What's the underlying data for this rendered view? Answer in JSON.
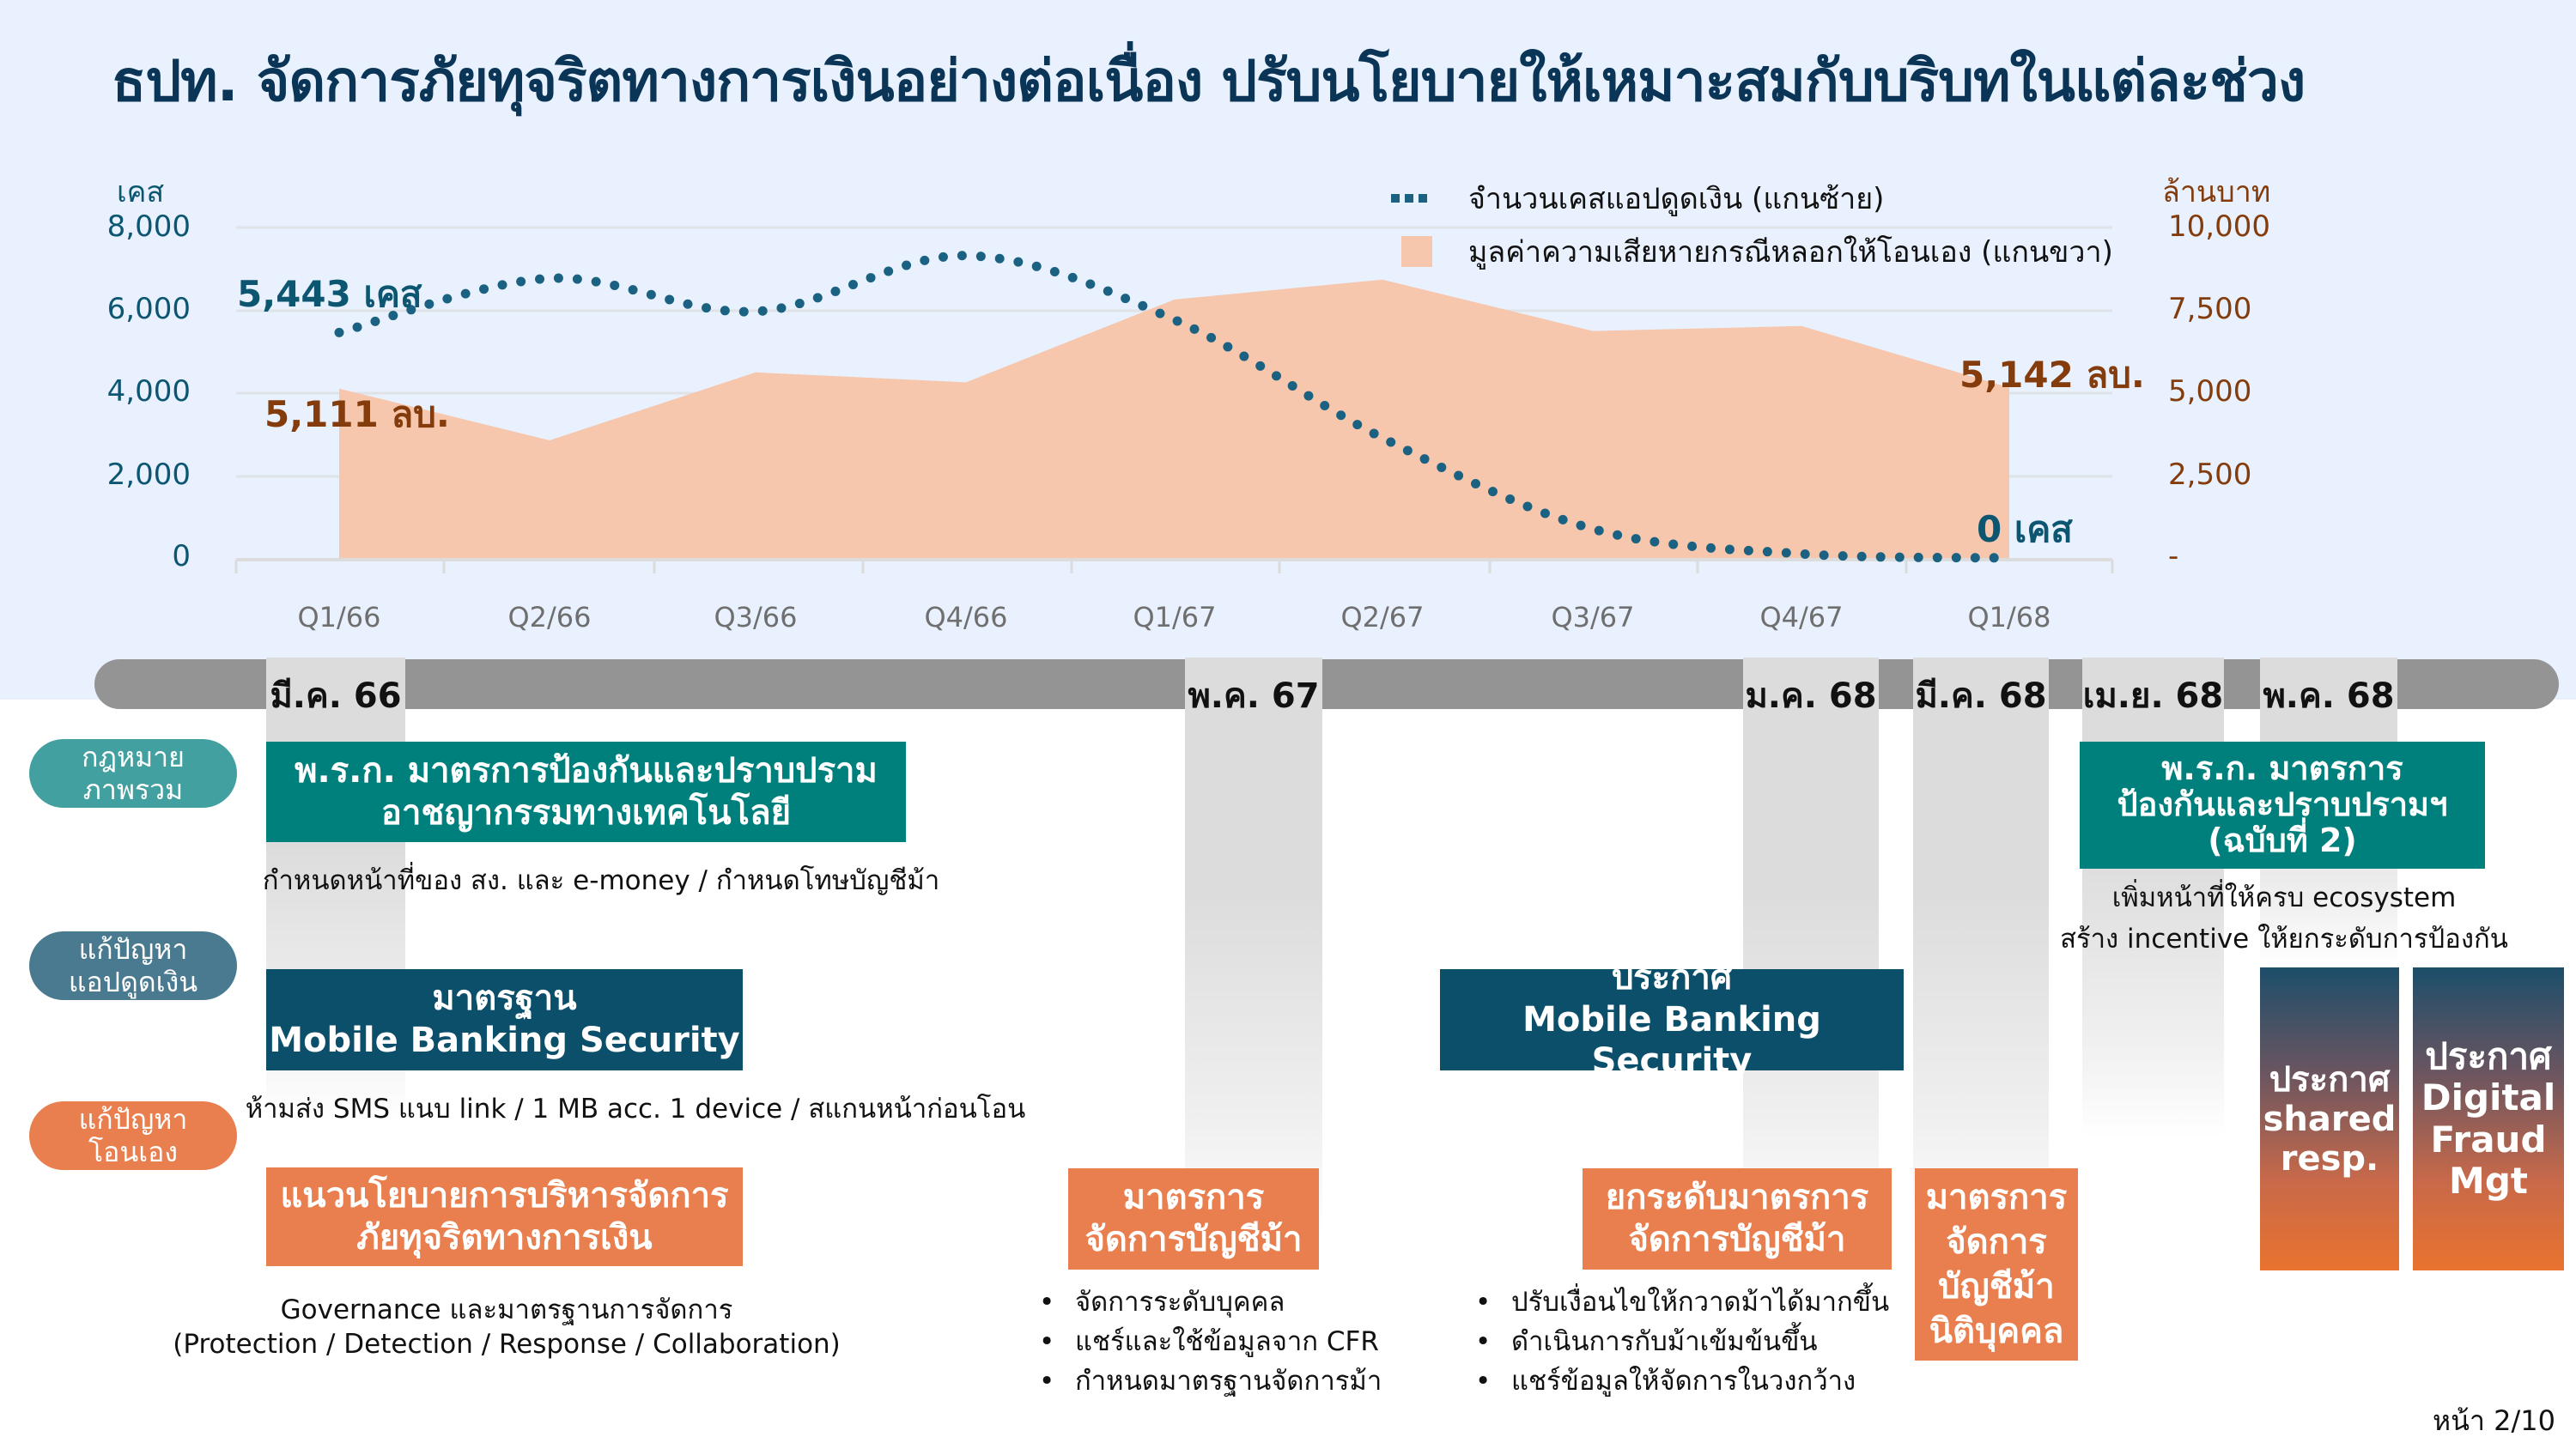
{
  "title": "ธปท. จัดการภัยทุจริตทางการเงินอย่างต่อเนื่อง ปรับนโยบายให้เหมาะสมกับบริบทในแต่ละช่วง",
  "chart_data": {
    "type": "line+area",
    "title": "",
    "x": [
      "Q1/66",
      "Q2/66",
      "Q3/66",
      "Q4/66",
      "Q1/67",
      "Q2/67",
      "Q3/67",
      "Q4/67",
      "Q1/68"
    ],
    "series": [
      {
        "name": "จำนวนเคสแอปดูดเงิน (แกนซ้าย)",
        "axis": "left",
        "style": "dotted-line",
        "color": "#1a6182",
        "values": [
          5443,
          6750,
          5950,
          7300,
          5750,
          2900,
          700,
          100,
          0
        ]
      },
      {
        "name": "มูลค่าความเสียหายกรณีหลอกให้โอนเอง (แกนขวา)",
        "axis": "right",
        "style": "area",
        "color": "#f6c6ad",
        "values": [
          5111,
          3550,
          5600,
          5300,
          7800,
          8400,
          6850,
          7000,
          5142
        ]
      }
    ],
    "ylabel_left": "เคส",
    "ylabel_right": "ล้านบาท",
    "ylim_left": [
      0,
      8000
    ],
    "ylim_right": [
      0,
      10000
    ],
    "yticks_left": [
      "8,000",
      "6,000",
      "4,000",
      "2,000",
      "0"
    ],
    "yticks_right": [
      "10,000",
      "7,500",
      "5,000",
      "2,500",
      "-"
    ],
    "grid": true,
    "legend_position": "top-right",
    "annotations": [
      {
        "text": "5,443 เคส",
        "series": "cases",
        "x": "Q1/66"
      },
      {
        "text": "5,111 ลบ.",
        "series": "loss",
        "x": "Q1/66"
      },
      {
        "text": "5,142  ลบ.",
        "series": "loss",
        "x": "Q1/68"
      },
      {
        "text": "0 เคส",
        "series": "cases",
        "x": "Q1/68"
      }
    ]
  },
  "timeline": {
    "events": [
      "มี.ค. 66",
      "พ.ค. 67",
      "ม.ค. 68",
      "มี.ค. 68",
      "เม.ย. 68",
      "พ.ค. 68"
    ]
  },
  "rows": [
    {
      "label_line1": "กฎหมาย",
      "label_line2": "ภาพรวม",
      "color": "#43a0a0"
    },
    {
      "label_line1": "แก้ปัญหา",
      "label_line2": "แอปดูดเงิน",
      "color": "#4a7a90"
    },
    {
      "label_line1": "แก้ปัญหา",
      "label_line2": "โอนเอง",
      "color": "#e97f4e"
    }
  ],
  "boxes": {
    "law1": {
      "line1": "พ.ร.ก. มาตรการป้องกันและปราบปราม",
      "line2": "อาชญากรรมทางเทคโนโลยี",
      "desc": "กำหนดหน้าที่ของ สง. และ e-money / กำหนดโทษบัญชีม้า"
    },
    "law2": {
      "line1": "พ.ร.ก. มาตรการ",
      "line2": "ป้องกันและปราบปรามฯ",
      "line3": "(ฉบับที่ 2)",
      "desc1": "เพิ่มหน้าที่ให้ครบ ecosystem",
      "desc2": "สร้าง incentive ให้ยกระดับการป้องกัน"
    },
    "mbs_standard": {
      "line1": "มาตรฐาน",
      "line2": "Mobile Banking Security",
      "desc": "ห้ามส่ง SMS แนบ link / 1 MB acc. 1 device / สแกนหน้าก่อนโอน"
    },
    "mbs_notice": {
      "line1": "ประกาศ",
      "line2": "Mobile Banking Security"
    },
    "shared_resp": {
      "line1": "ประกาศ",
      "line2": "shared",
      "line3": "resp."
    },
    "digital_fraud": {
      "line1": "ประกาศ",
      "line2": "Digital",
      "line3": "Fraud",
      "line4": "Mgt"
    },
    "fraud_policy": {
      "line1": "แนวนโยบายการบริหารจัดการ",
      "line2": "ภัยทุจริตทางการเงิน",
      "desc1": "Governance และมาตรฐานการจัดการ",
      "desc2": "(Protection / Detection / Response / Collaboration)"
    },
    "mule_measure": {
      "line1": "มาตรการ",
      "line2": "จัดการบัญชีม้า",
      "bullets": [
        "จัดการระดับบุคคล",
        "แชร์และใช้ข้อมูลจาก CFR",
        "กำหนดมาตรฐานจัดการม้า"
      ]
    },
    "mule_upgrade": {
      "line1": "ยกระดับมาตรการ",
      "line2": "จัดการบัญชีม้า",
      "bullets": [
        "ปรับเงื่อนไขให้กวาดม้าได้มากขึ้น",
        "ดำเนินการกับม้าเข้มข้นขึ้น",
        "แชร์ข้อมูลให้จัดการในวงกว้าง"
      ]
    },
    "mule_corporate": {
      "line1": "มาตรการ",
      "line2": "จัดการ",
      "line3": "บัญชีม้า",
      "line4": "นิติบุคคล"
    }
  },
  "page_number": "หน้า 2/10"
}
